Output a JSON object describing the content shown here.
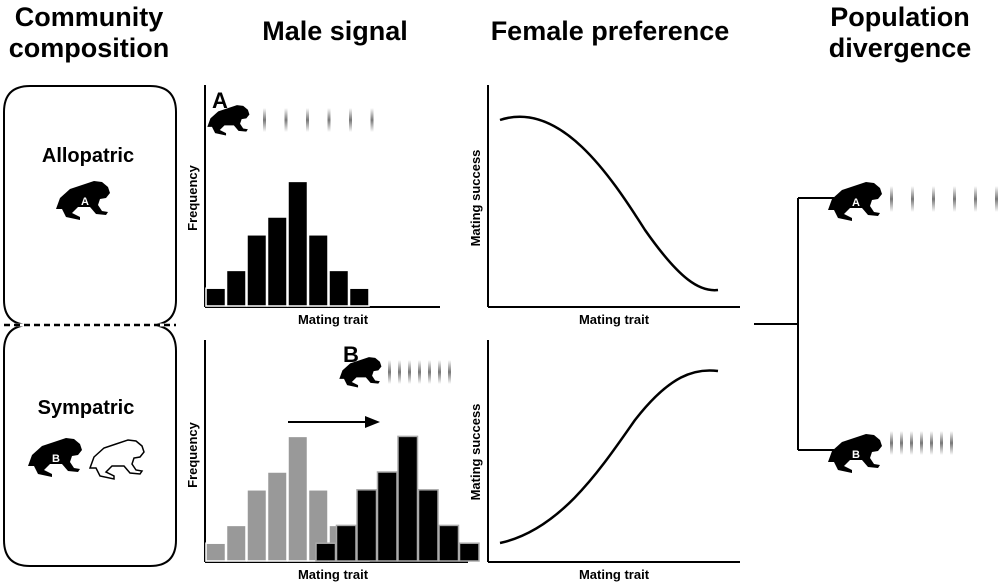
{
  "headers": {
    "community": "Community\ncomposition",
    "signal": "Male signal",
    "preference": "Female preference",
    "divergence": "Population\ndivergence"
  },
  "community": {
    "allopatric": "Allopatric",
    "sympatric": "Sympatric"
  },
  "panels": {
    "a_label": "A",
    "b_label": "B"
  },
  "frogs": {
    "a": "A",
    "b": "B"
  },
  "axes": {
    "frequency": "Frequency",
    "mating_trait": "Mating trait",
    "mating_success": "Mating success"
  },
  "chart_data": [
    {
      "type": "bar",
      "panel": "allopatric-male-signal",
      "xlabel": "Mating trait",
      "ylabel": "Frequency",
      "series": [
        {
          "name": "A",
          "color": "#000000",
          "values": [
            1,
            2,
            4,
            5,
            7,
            4,
            2,
            1
          ]
        }
      ]
    },
    {
      "type": "bar",
      "panel": "sympatric-male-signal",
      "xlabel": "Mating trait",
      "ylabel": "Frequency",
      "series": [
        {
          "name": "",
          "color": "#999999",
          "values": [
            1,
            2,
            4,
            5,
            7,
            4,
            2,
            1
          ]
        },
        {
          "name": "B",
          "color": "#000000",
          "values": [
            1,
            2,
            4,
            5,
            7,
            4,
            2,
            1
          ]
        }
      ]
    },
    {
      "type": "line",
      "panel": "allopatric-female-preference",
      "xlabel": "Mating trait",
      "ylabel": "Mating success",
      "trend": "decreasing"
    },
    {
      "type": "line",
      "panel": "sympatric-female-preference",
      "xlabel": "Mating trait",
      "ylabel": "Mating success",
      "trend": "increasing"
    }
  ]
}
